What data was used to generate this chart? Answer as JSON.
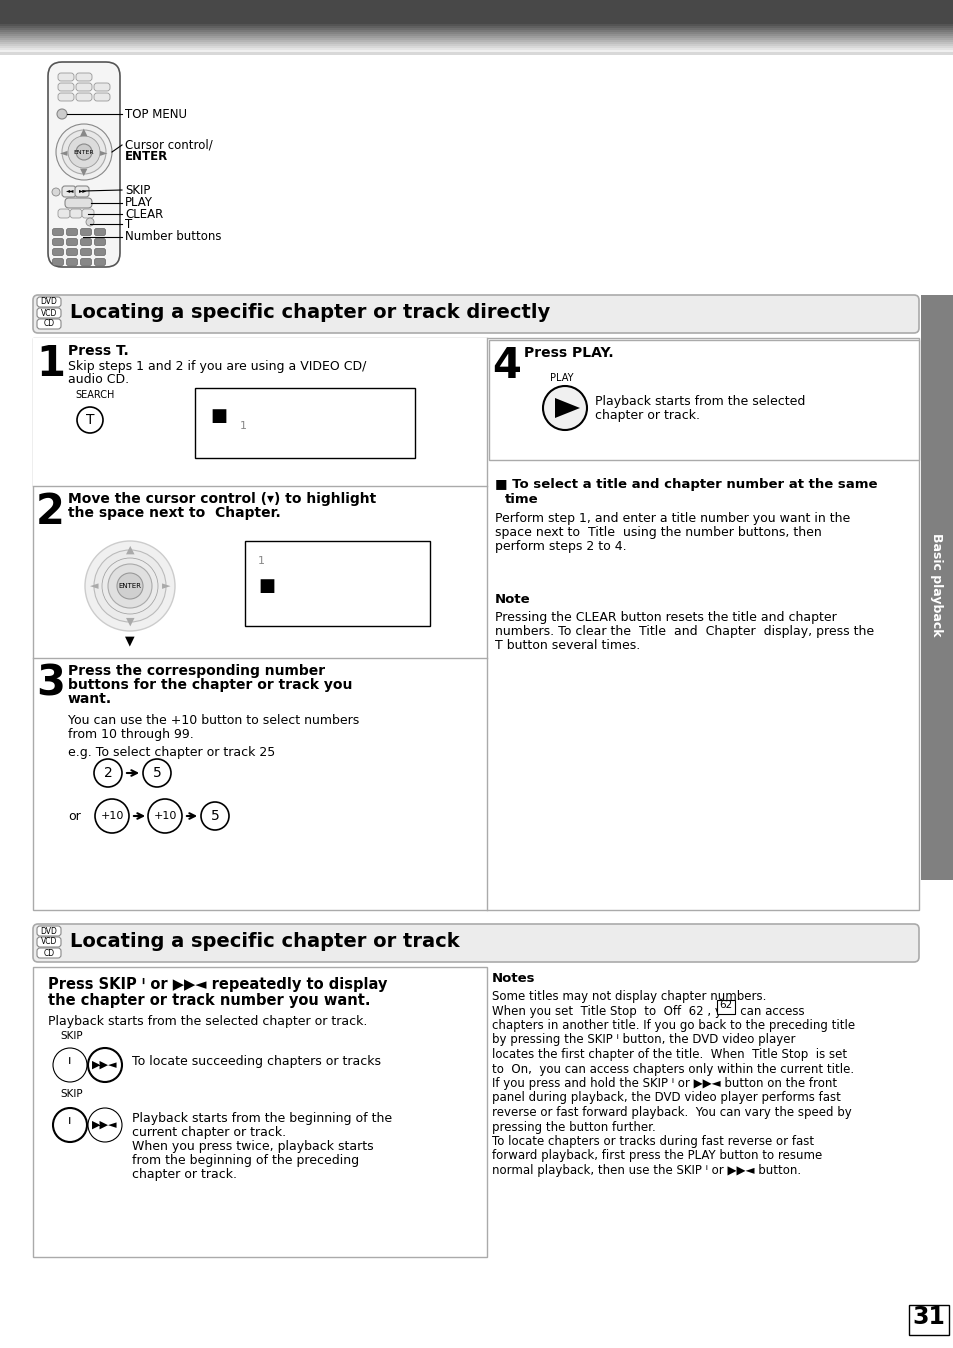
{
  "page_bg": "#ffffff",
  "section1_title": "Locating a specific chapter or track directly",
  "section2_title": "Locating a specific chapter or track",
  "page_number": "31",
  "sidebar_text": "Basic playback",
  "remote_labels": [
    "TOP MENU",
    "Cursor control/\nENTER",
    "SKIP",
    "PLAY",
    "CLEAR",
    "T",
    "Number buttons"
  ]
}
